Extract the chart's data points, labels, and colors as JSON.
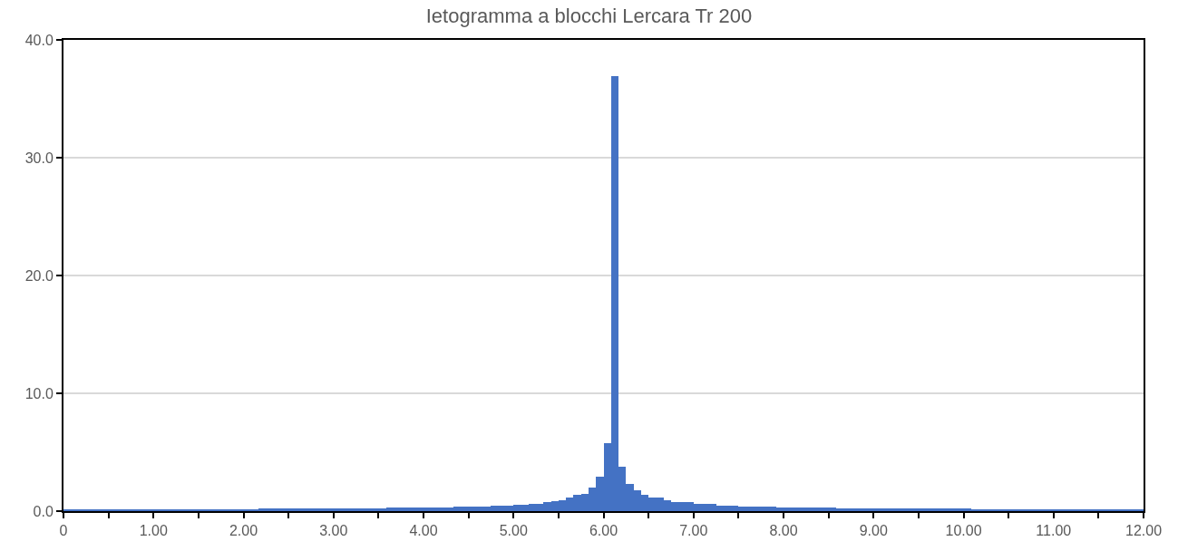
{
  "chart_data": {
    "type": "histogram",
    "title": "Ietogramma a blocchi Lercara Tr 200",
    "color": "#4472c4",
    "bins": [
      0,
      0.083,
      0.167,
      0.25,
      0.333,
      0.417,
      0.5,
      0.583,
      0.667,
      0.75,
      0.833,
      0.917,
      1,
      1.083,
      1.167,
      1.25,
      1.333,
      1.417,
      1.5,
      1.583,
      1.667,
      1.75,
      1.833,
      1.917,
      2,
      2.083,
      2.167,
      2.25,
      2.333,
      2.417,
      2.5,
      2.583,
      2.667,
      2.75,
      2.833,
      2.917,
      3,
      3.083,
      3.167,
      3.25,
      3.333,
      3.417,
      3.5,
      3.583,
      3.667,
      3.75,
      3.833,
      3.917,
      4,
      4.083,
      4.167,
      4.25,
      4.333,
      4.417,
      4.5,
      4.583,
      4.667,
      4.75,
      4.833,
      4.917,
      5,
      5.083,
      5.167,
      5.25,
      5.333,
      5.417,
      5.5,
      5.583,
      5.667,
      5.75,
      5.833,
      5.917,
      6,
      6.083,
      6.167,
      6.25,
      6.333,
      6.417,
      6.5,
      6.583,
      6.667,
      6.75,
      6.833,
      6.917,
      7,
      7.083,
      7.167,
      7.25,
      7.333,
      7.417,
      7.5,
      7.583,
      7.667,
      7.75,
      7.833,
      7.917,
      8,
      8.083,
      8.167,
      8.25,
      8.333,
      8.417,
      8.5,
      8.583,
      8.667,
      8.75,
      8.833,
      8.917,
      9,
      9.083,
      9.167,
      9.25,
      9.333,
      9.417,
      9.5,
      9.583,
      9.667,
      9.75,
      9.833,
      9.917,
      10,
      10.083,
      10.167,
      10.25,
      10.333,
      10.417,
      10.5,
      10.583,
      10.667,
      10.75,
      10.833,
      10.917,
      11,
      11.083,
      11.167,
      11.25,
      11.333,
      11.417,
      11.5,
      11.583,
      11.667,
      11.75,
      11.833,
      11.917,
      12
    ],
    "values": [
      0.1,
      0.1,
      0.1,
      0.1,
      0.1,
      0.1,
      0.1,
      0.1,
      0.1,
      0.1,
      0.1,
      0.1,
      0.1,
      0.1,
      0.1,
      0.1,
      0.1,
      0.1,
      0.1,
      0.1,
      0.1,
      0.1,
      0.1,
      0.1,
      0.1,
      0.1,
      0.2,
      0.2,
      0.2,
      0.2,
      0.2,
      0.2,
      0.2,
      0.2,
      0.2,
      0.2,
      0.2,
      0.2,
      0.2,
      0.2,
      0.2,
      0.2,
      0.2,
      0.3,
      0.3,
      0.3,
      0.3,
      0.3,
      0.3,
      0.3,
      0.3,
      0.3,
      0.35,
      0.35,
      0.35,
      0.35,
      0.35,
      0.45,
      0.45,
      0.45,
      0.55,
      0.55,
      0.65,
      0.65,
      0.75,
      0.85,
      0.95,
      1.15,
      1.35,
      1.5,
      2.0,
      2.9,
      5.8,
      36.9,
      3.8,
      2.3,
      1.8,
      1.4,
      1.15,
      1.15,
      0.9,
      0.8,
      0.8,
      0.8,
      0.6,
      0.6,
      0.6,
      0.5,
      0.5,
      0.5,
      0.4,
      0.4,
      0.4,
      0.4,
      0.4,
      0.3,
      0.3,
      0.3,
      0.3,
      0.3,
      0.3,
      0.3,
      0.3,
      0.2,
      0.2,
      0.2,
      0.2,
      0.2,
      0.2,
      0.2,
      0.2,
      0.2,
      0.2,
      0.2,
      0.2,
      0.2,
      0.2,
      0.2,
      0.2,
      0.2,
      0.2,
      0.1,
      0.1,
      0.1,
      0.1,
      0.1,
      0.1,
      0.1,
      0.1,
      0.1,
      0.1,
      0.1,
      0.1,
      0.1,
      0.1,
      0.1,
      0.1,
      0.1,
      0.1,
      0.1,
      0.1,
      0.1,
      0.1,
      0.1
    ],
    "xlim": [
      0,
      12
    ],
    "ylim": [
      0,
      40
    ],
    "xticks": [
      0,
      {
        "value": 0.5,
        "label": null
      },
      {
        "value": 1,
        "label": "1.00"
      },
      {
        "value": 1.5,
        "label": null
      },
      {
        "value": 2,
        "label": "2.00"
      },
      {
        "value": 2.5,
        "label": null
      },
      {
        "value": 3,
        "label": "3.00"
      },
      {
        "value": 3.5,
        "label": null
      },
      {
        "value": 4,
        "label": "4.00"
      },
      {
        "value": 4.5,
        "label": null
      },
      {
        "value": 5,
        "label": "5.00"
      },
      {
        "value": 5.5,
        "label": null
      },
      {
        "value": 6,
        "label": "6.00"
      },
      {
        "value": 6.5,
        "label": null
      },
      {
        "value": 7,
        "label": "7.00"
      },
      {
        "value": 7.5,
        "label": null
      },
      {
        "value": 8,
        "label": "8.00"
      },
      {
        "value": 8.5,
        "label": null
      },
      {
        "value": 9,
        "label": "9.00"
      },
      {
        "value": 9.5,
        "label": null
      },
      {
        "value": 10,
        "label": "10.00"
      },
      {
        "value": 10.5,
        "label": null
      },
      {
        "value": 11,
        "label": "11.00"
      },
      {
        "value": 11.5,
        "label": null
      },
      {
        "value": 12,
        "label": "12.00"
      }
    ],
    "yticks": [
      {
        "value": 0,
        "label": "0.0"
      },
      {
        "value": 10,
        "label": "10.0"
      },
      {
        "value": 20,
        "label": "20.0"
      },
      {
        "value": 30,
        "label": "30.0"
      },
      {
        "value": 40,
        "label": "40.0"
      }
    ],
    "grid": "y",
    "legend": false
  }
}
